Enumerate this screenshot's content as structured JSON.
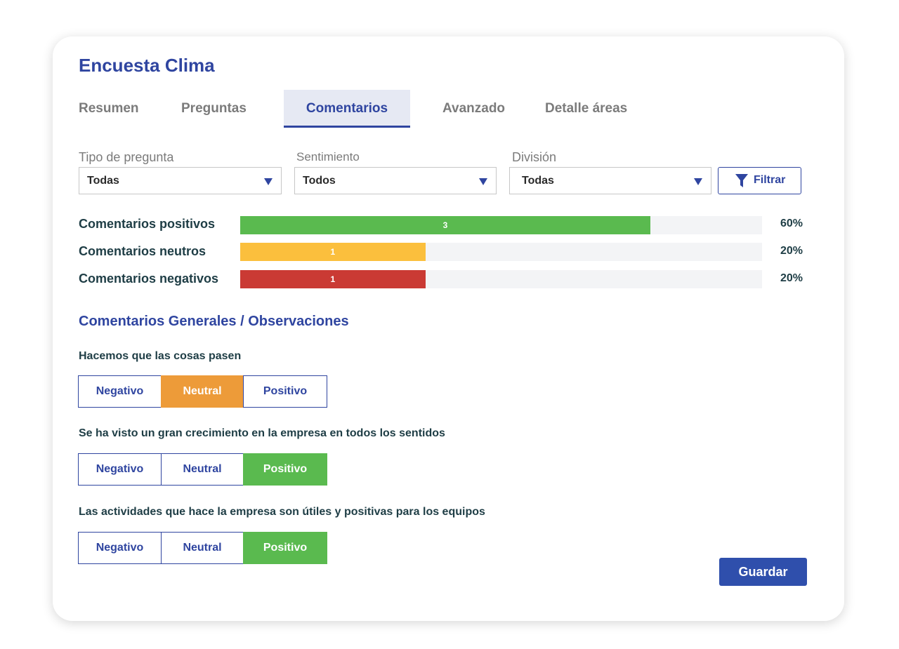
{
  "title": "Encuesta Clima",
  "tabs": [
    {
      "label": "Resumen",
      "active": false
    },
    {
      "label": "Preguntas",
      "active": false
    },
    {
      "label": "Comentarios",
      "active": true
    },
    {
      "label": "Avanzado",
      "active": false
    },
    {
      "label": "Detalle áreas",
      "active": false
    }
  ],
  "filters": {
    "tipo": {
      "label": "Tipo de pregunta",
      "value": "Todas"
    },
    "sentimiento": {
      "label": "Sentimiento",
      "value": "Todos"
    },
    "division": {
      "label": "División",
      "value": "Todas"
    },
    "button_label": "Filtrar",
    "button_icon": "filter-icon"
  },
  "stats": [
    {
      "label": "Comentarios positivos",
      "count": "3",
      "percent": "60%",
      "fraction": 0.786,
      "color": "#5aba4f"
    },
    {
      "label": "Comentarios neutros",
      "count": "1",
      "percent": "20%",
      "fraction": 0.355,
      "color": "#fbbf3d"
    },
    {
      "label": "Comentarios negativos",
      "count": "1",
      "percent": "20%",
      "fraction": 0.355,
      "color": "#ca3a34"
    }
  ],
  "section_title": "Comentarios Generales / Observaciones",
  "options": {
    "negative": "Negativo",
    "neutral": "Neutral",
    "positive": "Positivo"
  },
  "comments": [
    {
      "text": "Hacemos que las cosas pasen",
      "selected": "neutral"
    },
    {
      "text": "Se ha visto un gran crecimiento en la empresa en todos los sentidos",
      "selected": "positive"
    },
    {
      "text": "Las actividades que hace la empresa son útiles y positivas para los equipos",
      "selected": "positive"
    }
  ],
  "save_label": "Guardar",
  "colors": {
    "accent": "#2f45a0",
    "positive": "#5aba4f",
    "neutral_bar": "#fbbf3d",
    "negative": "#ca3a34",
    "neutral_selected": "#ed9b39"
  }
}
